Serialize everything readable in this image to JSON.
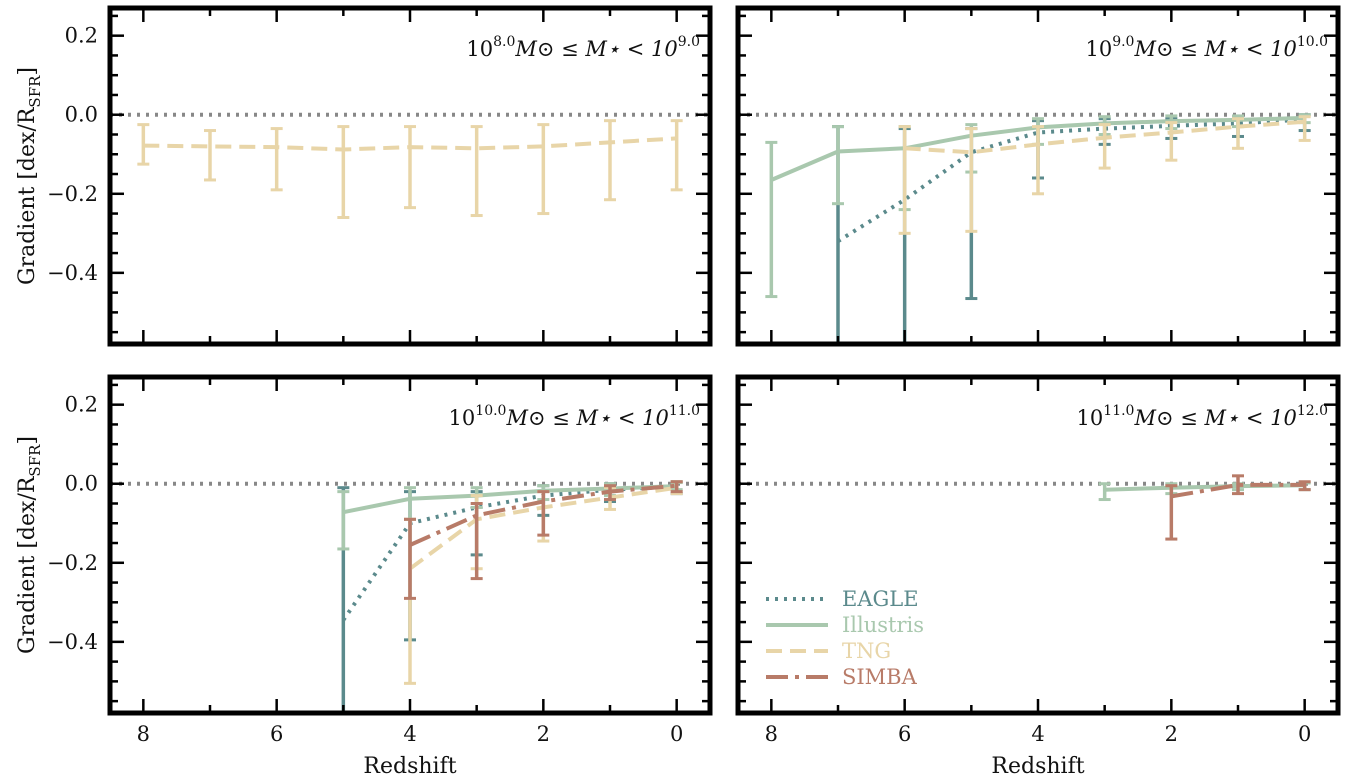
{
  "chart_data": {
    "type": "line",
    "xlabel": "Redshift",
    "ylabel": "Gradient [dex/R_SFR]",
    "xlim": [
      8.5,
      -0.5
    ],
    "ylim": [
      -0.58,
      0.27
    ],
    "x_ticks": [
      8,
      6,
      4,
      2,
      0
    ],
    "y_ticks": [
      0.2,
      0.0,
      -0.2,
      -0.4
    ],
    "x_tick_labels": [
      "8",
      "6",
      "4",
      "2",
      "0"
    ],
    "y_tick_labels": [
      "0.2",
      "0.0",
      "−0.2",
      "−0.4"
    ],
    "reference_line": {
      "y": 0.0,
      "style": "dotted",
      "color": "#888888"
    },
    "legend": {
      "placement": "lower-left of bottom-right panel",
      "entries": [
        {
          "name": "EAGLE",
          "color": "#5b8a8c",
          "dash": "dotted"
        },
        {
          "name": "Illustris",
          "color": "#a9c8ae",
          "dash": "solid"
        },
        {
          "name": "TNG",
          "color": "#e8d5a8",
          "dash": "dashed"
        },
        {
          "name": "SIMBA",
          "color": "#b87b68",
          "dash": "dashdot"
        }
      ]
    },
    "panels": [
      {
        "title": "10^{8.0} M⊙ ≤ M⋆ < 10^{9.0}",
        "title_parts": {
          "pre": "10",
          "exp1": "8.0",
          "mid": "M⊙ ≤ M⋆ < 10",
          "exp2": "9.0"
        },
        "series": [
          {
            "name": "TNG",
            "x": [
              8,
              7,
              6,
              5,
              4,
              3,
              2,
              1,
              0
            ],
            "y": [
              -0.078,
              -0.08,
              -0.082,
              -0.088,
              -0.082,
              -0.085,
              -0.08,
              -0.07,
              -0.06
            ],
            "err_low": [
              -0.125,
              -0.165,
              -0.19,
              -0.26,
              -0.235,
              -0.255,
              -0.25,
              -0.215,
              -0.19
            ],
            "err_high": [
              -0.025,
              -0.04,
              -0.035,
              -0.03,
              -0.03,
              -0.03,
              -0.025,
              -0.015,
              -0.015
            ]
          }
        ]
      },
      {
        "title": "10^{9.0} M⊙ ≤ M⋆ < 10^{10.0}",
        "title_parts": {
          "pre": "10",
          "exp1": "9.0",
          "mid": "M⊙ ≤ M⋆ < 10",
          "exp2": "10.0"
        },
        "series": [
          {
            "name": "EAGLE",
            "x": [
              7,
              6,
              5,
              4,
              3,
              2,
              1,
              0
            ],
            "y": [
              -0.32,
              -0.215,
              -0.095,
              -0.045,
              -0.035,
              -0.028,
              -0.022,
              -0.012
            ],
            "err_low": [
              -0.6,
              -0.6,
              -0.465,
              -0.16,
              -0.075,
              -0.06,
              -0.055,
              -0.04
            ],
            "err_high": [
              -0.03,
              -0.035,
              -0.035,
              -0.015,
              -0.01,
              -0.01,
              -0.005,
              0.0
            ]
          },
          {
            "name": "Illustris",
            "x": [
              8,
              7,
              6,
              5,
              4,
              3,
              2,
              1,
              0
            ],
            "y": [
              -0.165,
              -0.093,
              -0.085,
              -0.053,
              -0.032,
              -0.022,
              -0.016,
              -0.013,
              -0.008
            ],
            "err_low": [
              -0.46,
              -0.225,
              -0.24,
              -0.145,
              -0.075,
              -0.05,
              -0.035,
              -0.03,
              -0.02
            ],
            "err_high": [
              -0.07,
              -0.03,
              -0.03,
              -0.025,
              -0.01,
              -0.005,
              -0.003,
              -0.003,
              0.0
            ]
          },
          {
            "name": "TNG",
            "x": [
              6,
              5,
              4,
              3,
              2,
              1,
              0
            ],
            "y": [
              -0.085,
              -0.095,
              -0.075,
              -0.058,
              -0.045,
              -0.03,
              -0.018
            ],
            "err_low": [
              -0.3,
              -0.295,
              -0.2,
              -0.135,
              -0.115,
              -0.085,
              -0.065
            ],
            "err_high": [
              -0.03,
              -0.035,
              -0.03,
              -0.025,
              -0.02,
              -0.01,
              -0.005
            ]
          }
        ]
      },
      {
        "title": "10^{10.0} M⊙ ≤ M⋆ < 10^{11.0}",
        "title_parts": {
          "pre": "10",
          "exp1": "10.0",
          "mid": "M⊙ ≤ M⋆ < 10",
          "exp2": "11.0"
        },
        "series": [
          {
            "name": "EAGLE",
            "x": [
              5,
              4,
              3,
              2,
              1,
              0
            ],
            "y": [
              -0.345,
              -0.1,
              -0.06,
              -0.03,
              -0.015,
              -0.007
            ],
            "err_low": [
              -0.6,
              -0.395,
              -0.18,
              -0.08,
              -0.045,
              -0.025
            ],
            "err_high": [
              -0.01,
              -0.02,
              -0.02,
              -0.005,
              0.0,
              0.005
            ]
          },
          {
            "name": "Illustris",
            "x": [
              5,
              4,
              3,
              2,
              1,
              0
            ],
            "y": [
              -0.072,
              -0.038,
              -0.03,
              -0.018,
              -0.012,
              -0.006
            ],
            "err_low": [
              -0.165,
              -0.09,
              -0.06,
              -0.04,
              -0.03,
              -0.015
            ],
            "err_high": [
              -0.02,
              -0.01,
              -0.01,
              -0.005,
              0.0,
              0.003
            ]
          },
          {
            "name": "TNG",
            "x": [
              4,
              3,
              2,
              1,
              0
            ],
            "y": [
              -0.215,
              -0.09,
              -0.06,
              -0.035,
              -0.01
            ],
            "err_low": [
              -0.505,
              -0.215,
              -0.145,
              -0.065,
              -0.025
            ],
            "err_high": [
              -0.09,
              -0.03,
              -0.02,
              -0.01,
              0.005
            ]
          },
          {
            "name": "SIMBA",
            "x": [
              4,
              3,
              2,
              1,
              0
            ],
            "y": [
              -0.155,
              -0.08,
              -0.045,
              -0.02,
              -0.005
            ],
            "err_low": [
              -0.29,
              -0.24,
              -0.13,
              -0.04,
              -0.02
            ],
            "err_high": [
              -0.09,
              -0.05,
              -0.02,
              -0.005,
              0.005
            ]
          }
        ]
      },
      {
        "title": "10^{11.0} M⊙ ≤ M⋆ < 10^{12.0}",
        "title_parts": {
          "pre": "10",
          "exp1": "11.0",
          "mid": "M⊙ ≤ M⋆ < 10",
          "exp2": "12.0"
        },
        "series": [
          {
            "name": "Illustris",
            "x": [
              3,
              2,
              1,
              0
            ],
            "y": [
              -0.015,
              -0.01,
              -0.006,
              -0.004
            ],
            "err_low": [
              -0.04,
              -0.025,
              -0.015,
              -0.015
            ],
            "err_high": [
              0.0,
              0.0,
              0.0,
              0.002
            ]
          },
          {
            "name": "SIMBA",
            "x": [
              2,
              1,
              0
            ],
            "y": [
              -0.032,
              -0.003,
              -0.003
            ],
            "err_low": [
              -0.14,
              -0.025,
              -0.015
            ],
            "err_high": [
              -0.005,
              0.02,
              0.005
            ]
          }
        ]
      }
    ]
  }
}
